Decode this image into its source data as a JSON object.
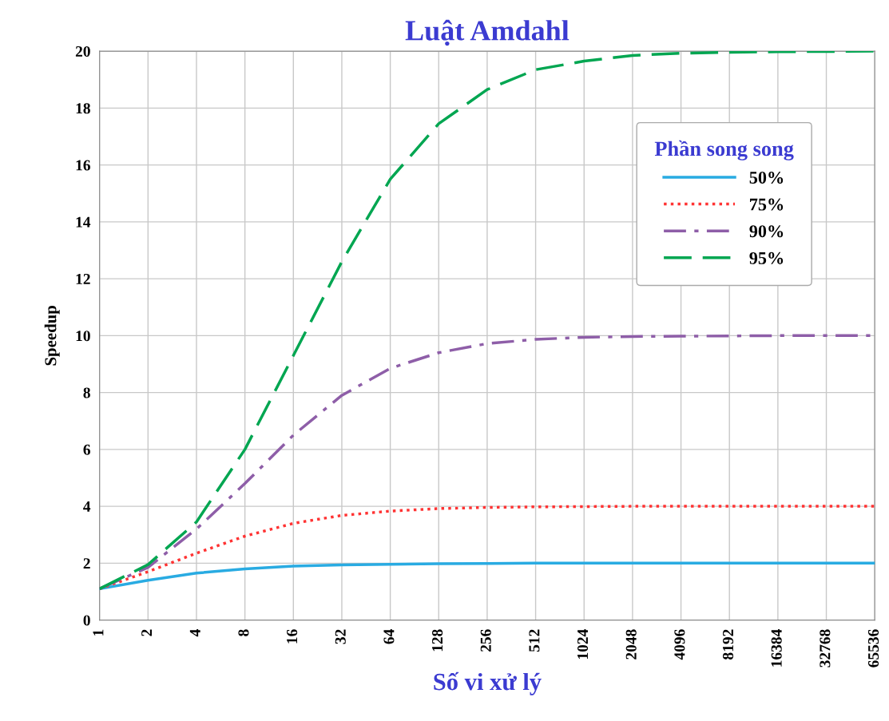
{
  "chart_data": {
    "type": "line",
    "title": "Luật Amdahl",
    "xlabel": "Số vi xử lý",
    "ylabel": "Speedup",
    "legend_title": "Phần song song",
    "categories": [
      "1",
      "2",
      "4",
      "8",
      "16",
      "32",
      "64",
      "128",
      "256",
      "512",
      "1024",
      "2048",
      "4096",
      "8192",
      "16384",
      "32768",
      "65536"
    ],
    "series": [
      {
        "name": "50%",
        "color": "#29abe2",
        "line_style": "solid",
        "values": [
          1.1,
          1.4,
          1.65,
          1.8,
          1.9,
          1.94,
          1.96,
          1.98,
          1.99,
          2,
          2,
          2,
          2,
          2,
          2,
          2,
          2
        ]
      },
      {
        "name": "75%",
        "color": "#ff3333",
        "line_style": "dotted",
        "values": [
          1.1,
          1.7,
          2.35,
          2.95,
          3.4,
          3.68,
          3.83,
          3.92,
          3.96,
          3.98,
          3.99,
          4,
          4,
          4,
          4,
          4,
          4
        ]
      },
      {
        "name": "90%",
        "color": "#8e5ea8",
        "line_style": "dashdot",
        "values": [
          1.1,
          1.85,
          3.2,
          4.8,
          6.5,
          7.9,
          8.85,
          9.4,
          9.72,
          9.87,
          9.94,
          9.97,
          9.98,
          9.99,
          10,
          10,
          10
        ]
      },
      {
        "name": "95%",
        "color": "#00a651",
        "line_style": "dashed",
        "values": [
          1.1,
          1.95,
          3.45,
          6.0,
          9.3,
          12.6,
          15.5,
          17.45,
          18.65,
          19.35,
          19.65,
          19.85,
          19.93,
          19.96,
          19.98,
          19.99,
          20
        ]
      }
    ],
    "ylim": [
      0,
      20
    ],
    "yticks": [
      0,
      2,
      4,
      6,
      8,
      10,
      12,
      14,
      16,
      18,
      20
    ],
    "grid": true,
    "legend": "top right",
    "marker": "none"
  }
}
